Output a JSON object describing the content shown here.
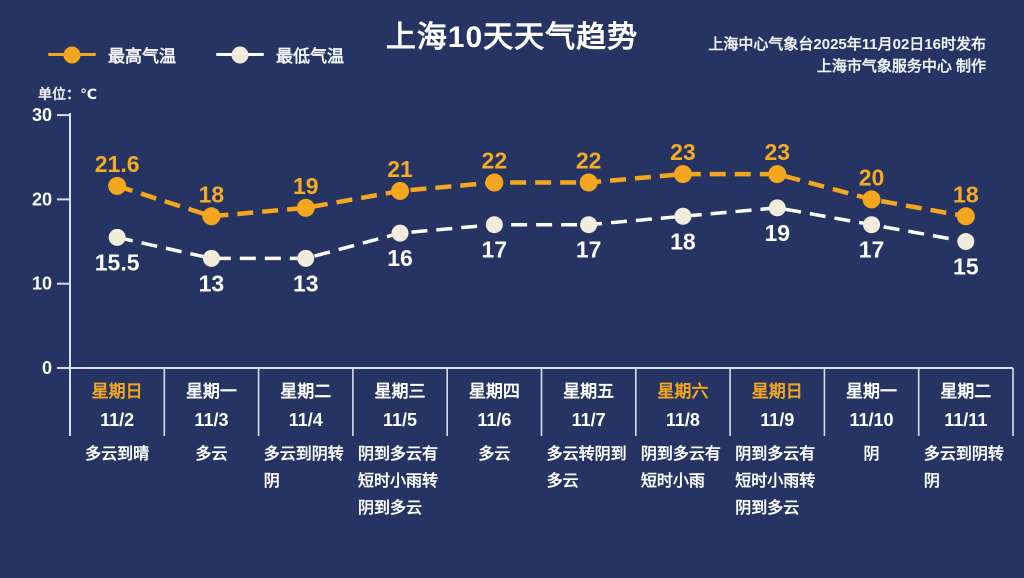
{
  "header": {
    "title": "上海10天天气趋势",
    "source_line1": "上海中心气象台2025年11月02日16时发布",
    "source_line2": "上海市气象服务中心 制作",
    "unit_label": "单位：℃"
  },
  "legend": {
    "high_label": "最高气温",
    "low_label": "最低气温"
  },
  "colors": {
    "background": "#253463",
    "high": "#F4A71E",
    "low_line": "#FFFFFF",
    "low_marker": "#F2ECDC",
    "axis": "#D9DEE8",
    "text": "#FFFFFF",
    "weekend": "#F4A71E"
  },
  "chart_data": {
    "type": "line",
    "title": "上海10天天气趋势",
    "categories": [
      "11/2",
      "11/3",
      "11/4",
      "11/5",
      "11/6",
      "11/7",
      "11/8",
      "11/9",
      "11/10",
      "11/11"
    ],
    "series": [
      {
        "name": "最高气温",
        "color": "#F4A71E",
        "marker_color": "#F4A71E",
        "label_color": "#F6AB24",
        "values": [
          21.6,
          18,
          19,
          21,
          22,
          22,
          23,
          23,
          20,
          18
        ]
      },
      {
        "name": "最低气温",
        "color": "#FFFFFF",
        "marker_color": "#F2ECDC",
        "label_color": "#FFFFFF",
        "values": [
          15.5,
          13,
          13,
          16,
          17,
          17,
          18,
          19,
          17,
          15
        ]
      }
    ],
    "unit": "℃",
    "ylabel": "单位：℃",
    "yticks": [
      0,
      10,
      20,
      30
    ],
    "ylim": [
      0,
      30
    ],
    "grid": false,
    "line_style": "dashed",
    "legend_position": "top-left"
  },
  "days": [
    {
      "weekday": "星期日",
      "date": "11/2",
      "weekend": true,
      "weather": "多云到晴"
    },
    {
      "weekday": "星期一",
      "date": "11/3",
      "weekend": false,
      "weather": "多云"
    },
    {
      "weekday": "星期二",
      "date": "11/4",
      "weekend": false,
      "weather": "多云到阴转阴"
    },
    {
      "weekday": "星期三",
      "date": "11/5",
      "weekend": false,
      "weather": "阴到多云有短时小雨转阴到多云"
    },
    {
      "weekday": "星期四",
      "date": "11/6",
      "weekend": false,
      "weather": "多云"
    },
    {
      "weekday": "星期五",
      "date": "11/7",
      "weekend": false,
      "weather": "多云转阴到多云"
    },
    {
      "weekday": "星期六",
      "date": "11/8",
      "weekend": true,
      "weather": "阴到多云有短时小雨"
    },
    {
      "weekday": "星期日",
      "date": "11/9",
      "weekend": true,
      "weather": "阴到多云有短时小雨转阴到多云"
    },
    {
      "weekday": "星期一",
      "date": "11/10",
      "weekend": false,
      "weather": "阴"
    },
    {
      "weekday": "星期二",
      "date": "11/11",
      "weekend": false,
      "weather": "多云到阴转阴"
    }
  ]
}
